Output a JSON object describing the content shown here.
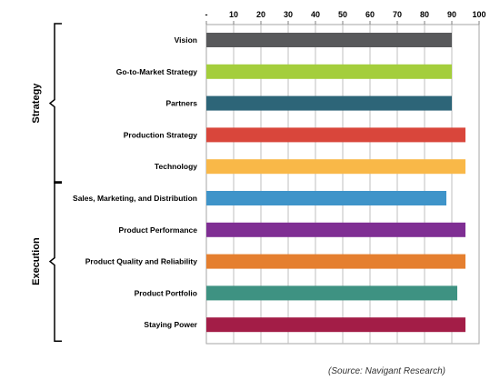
{
  "chart_data": {
    "type": "bar",
    "orientation": "horizontal",
    "categories": [
      "Vision",
      "Go-to-Market Strategy",
      "Partners",
      "Production Strategy",
      "Technology",
      "Sales, Marketing, and Distribution",
      "Product Performance",
      "Product Quality and Reliability",
      "Product Portfolio",
      "Staying Power"
    ],
    "values": [
      90,
      90,
      90,
      95,
      95,
      88,
      95,
      95,
      92,
      95
    ],
    "colors": [
      "#58595b",
      "#a4ce3c",
      "#2d6578",
      "#d9463b",
      "#f9b848",
      "#3f94c9",
      "#7f2e93",
      "#e57f2f",
      "#3e9282",
      "#a31d47"
    ],
    "xlim": [
      0,
      100
    ],
    "xticks": [
      0,
      10,
      20,
      30,
      40,
      50,
      60,
      70,
      80,
      90,
      100
    ],
    "xtick_labels": [
      "-",
      "10",
      "20",
      "30",
      "40",
      "50",
      "60",
      "70",
      "80",
      "90",
      "100"
    ],
    "axis_position": "top",
    "grid": true,
    "groups": [
      {
        "label": "Strategy",
        "start": 0,
        "end": 4
      },
      {
        "label": "Execution",
        "start": 5,
        "end": 9
      }
    ],
    "source": "(Source: Navigant Research)"
  }
}
